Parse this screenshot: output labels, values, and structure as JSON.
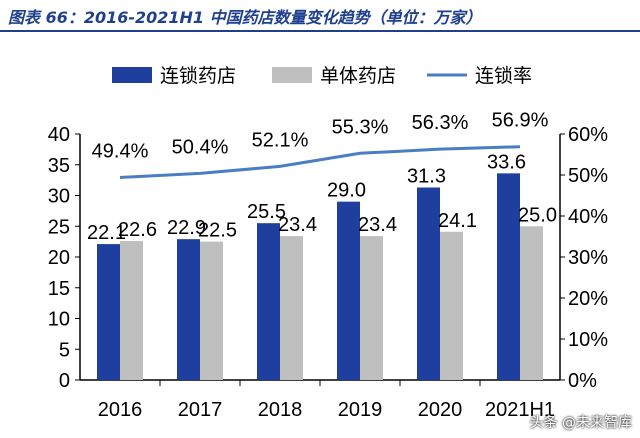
{
  "title": "图表 66：2016-2021H1 中国药店数量变化趋势（单位：万家）",
  "watermark": "头条 @未来智库",
  "colors": {
    "chain": "#1f3f9f",
    "single": "#bfbfbf",
    "rate": "#4a7ec4",
    "title": "#1f3f8f"
  },
  "chart_data": {
    "type": "bar",
    "categories": [
      "2016",
      "2017",
      "2018",
      "2019",
      "2020",
      "2021H1"
    ],
    "series": [
      {
        "name": "连锁药店",
        "type": "bar",
        "axis": "left",
        "values": [
          22.1,
          22.9,
          25.5,
          29.0,
          31.3,
          33.6
        ],
        "labels": [
          "22.1",
          "22.9",
          "25.5",
          "29.0",
          "31.3",
          "33.6"
        ]
      },
      {
        "name": "单体药店",
        "type": "bar",
        "axis": "left",
        "values": [
          22.6,
          22.5,
          23.4,
          23.4,
          24.1,
          25.0
        ],
        "labels": [
          "22.6",
          "22.5",
          "23.4",
          "23.4",
          "24.1",
          "25.0"
        ]
      },
      {
        "name": "连锁率",
        "type": "line",
        "axis": "right",
        "values": [
          49.4,
          50.4,
          52.1,
          55.3,
          56.3,
          56.9
        ],
        "labels": [
          "49.4%",
          "50.4%",
          "52.1%",
          "55.3%",
          "56.3%",
          "56.9%"
        ]
      }
    ],
    "y_left": {
      "range": [
        0,
        40
      ],
      "ticks": [
        "0",
        "5",
        "10",
        "15",
        "20",
        "25",
        "30",
        "35",
        "40"
      ]
    },
    "y_right": {
      "range": [
        0,
        60
      ],
      "ticks": [
        "0%",
        "10%",
        "20%",
        "30%",
        "40%",
        "50%",
        "60%"
      ]
    },
    "legend_position": "top",
    "grid": false
  }
}
